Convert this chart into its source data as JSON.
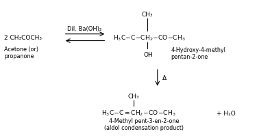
{
  "figsize": [
    3.94,
    2.03
  ],
  "dpi": 100,
  "bg_color": "#ffffff",
  "font_size_main": 6.5,
  "font_size_label": 5.8,
  "font_size_catalyst": 6.0,
  "reactant": "2 CH₃COCH₃",
  "reactant_label1": "Acetone (or)",
  "reactant_label2": "propanone",
  "catalyst": "Dil. Ba(OH)₂",
  "p1_ch3": "CH₃",
  "p1_oh": "OH",
  "p1_label1": "4-Hydroxy-4-methyl",
  "p1_label2": "pentan-2-one",
  "delta": "Δ",
  "p2_ch3": "CH₃",
  "p2_label1": "4-Methyl pent-3-en-2-one",
  "p2_label2": "(aldol condensation product)",
  "plus_h2o": "+ H₂O"
}
